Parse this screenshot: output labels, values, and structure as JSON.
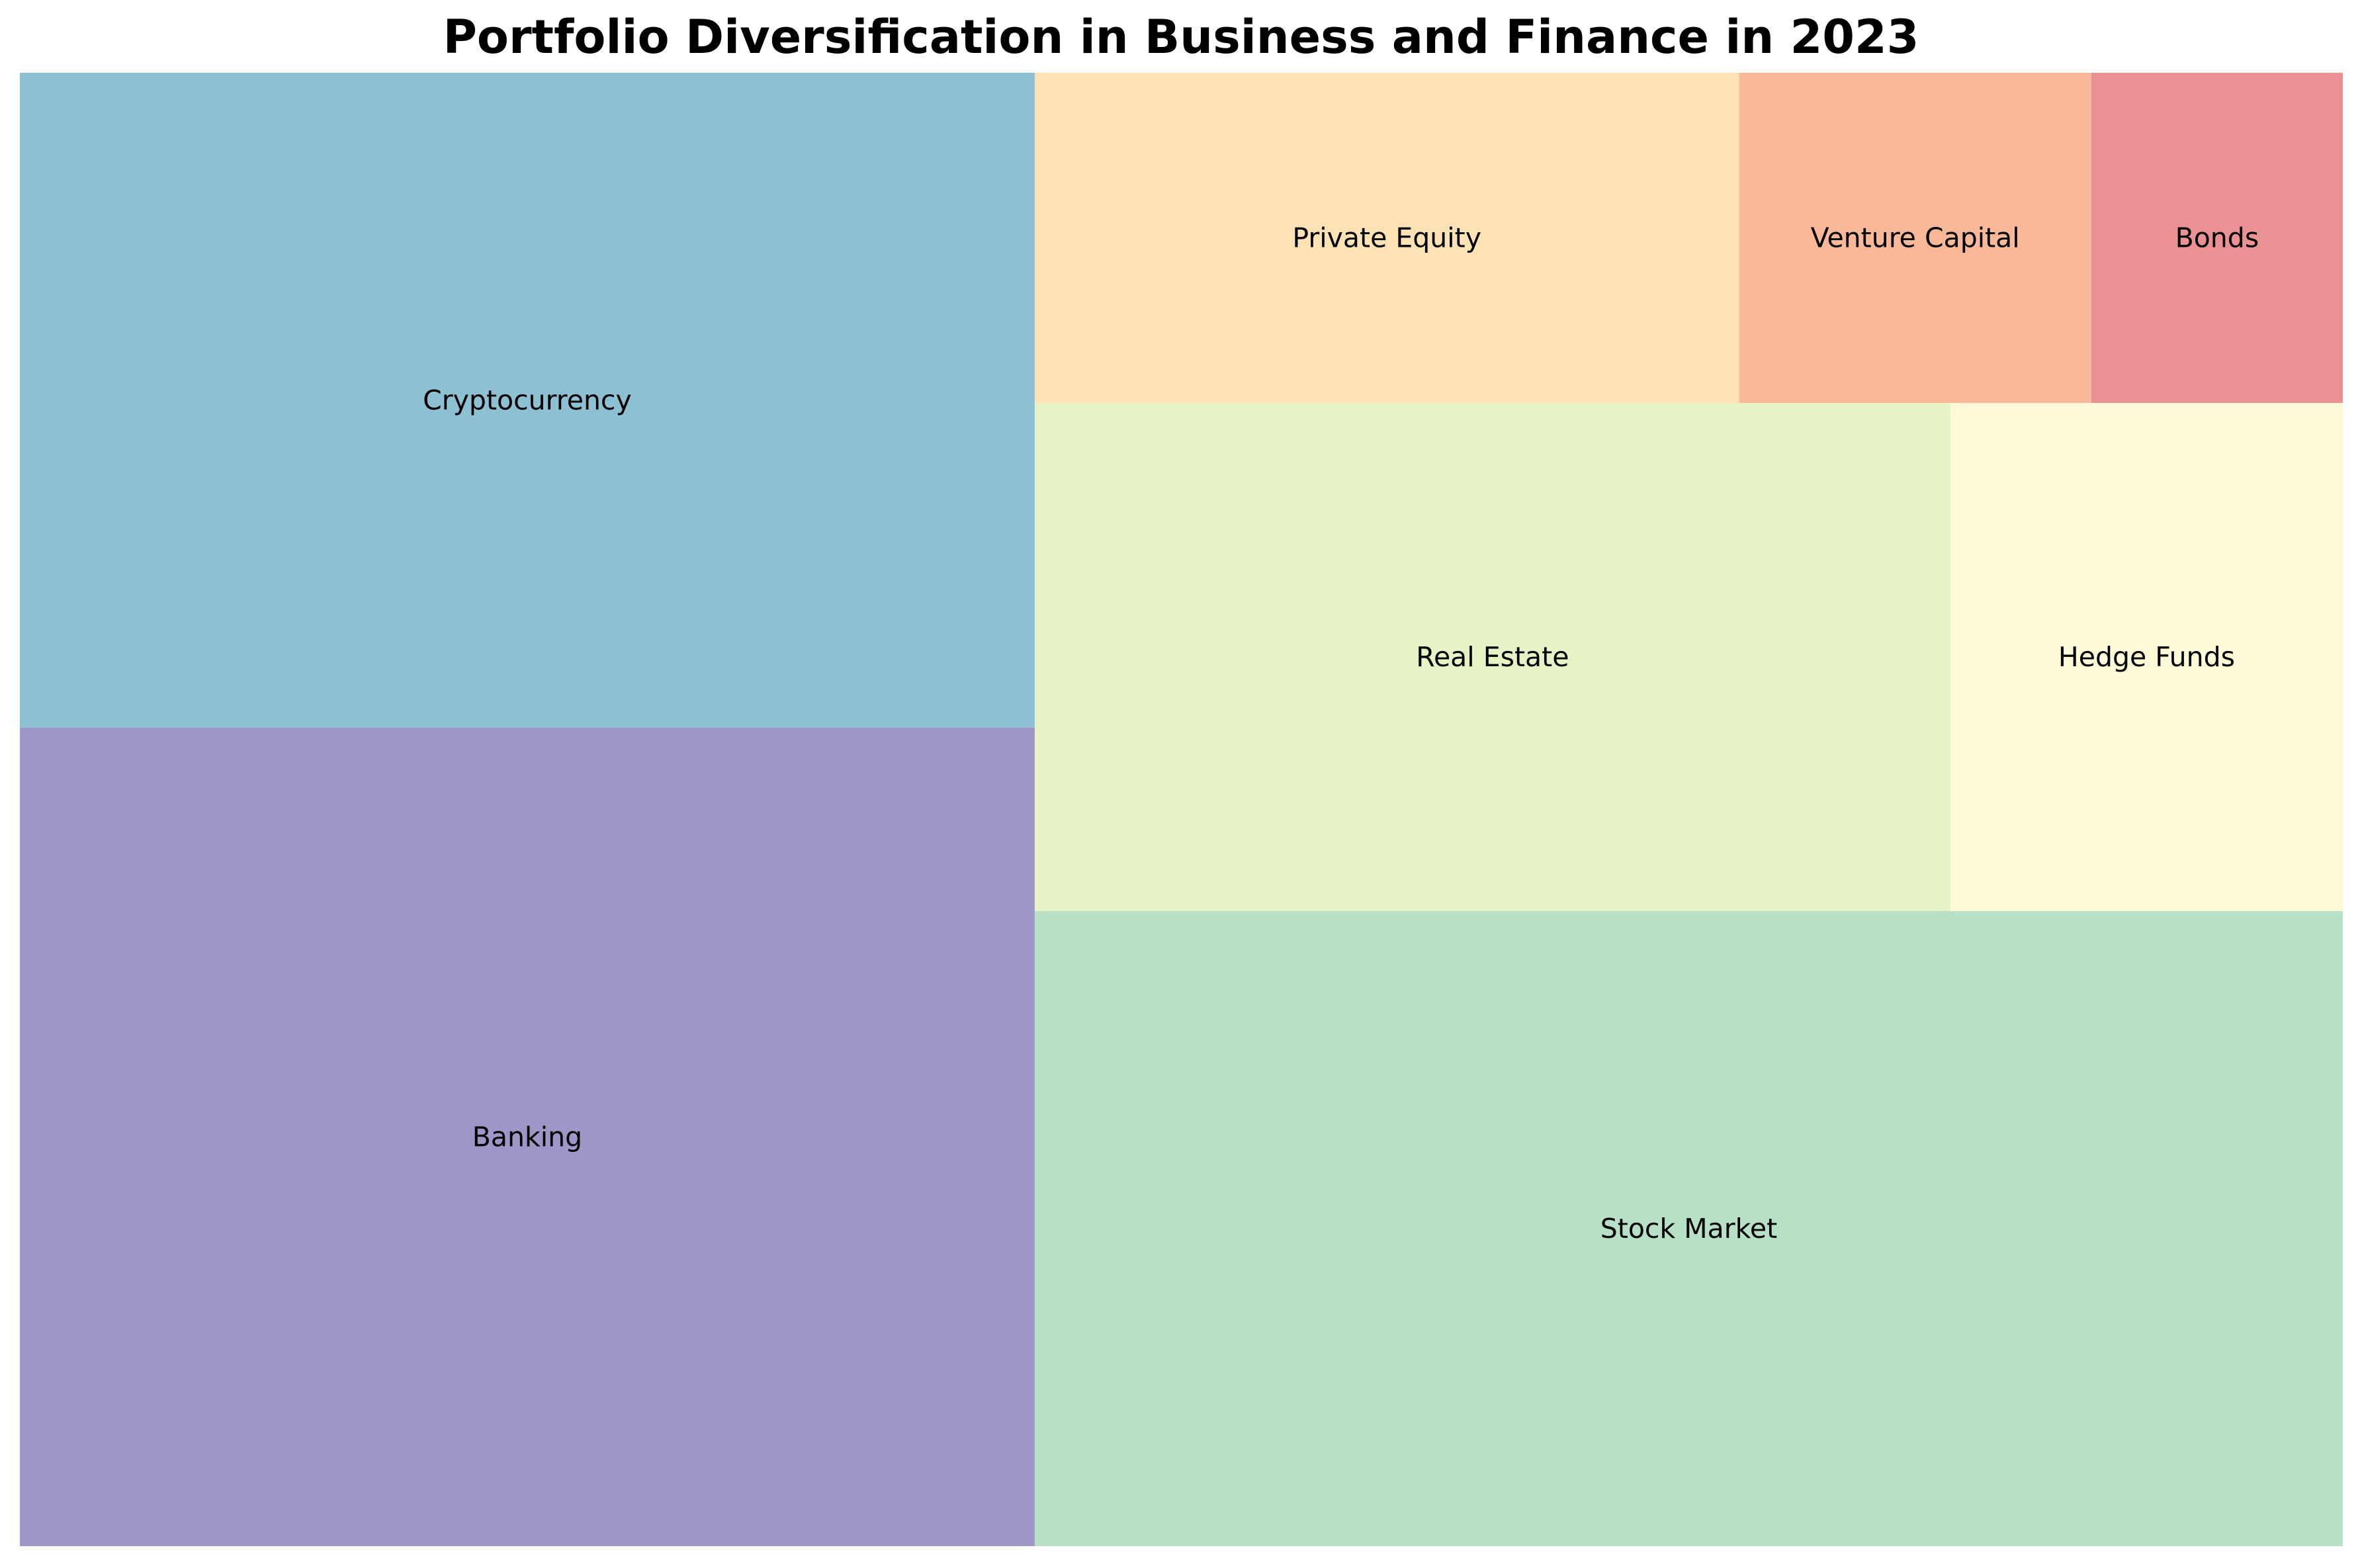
{
  "chart_data": {
    "type": "treemap",
    "title": "Portfolio Diversification in Business and Finance in 2023",
    "categories": [
      "Banking",
      "Cryptocurrency",
      "Stock Market",
      "Real Estate",
      "Hedge Funds",
      "Private Equity",
      "Venture Capital",
      "Bonds"
    ],
    "values": [
      25,
      20,
      25,
      14,
      6,
      7,
      3.5,
      2.5
    ],
    "colors": [
      "#9e96c7",
      "#8dc0d2",
      "#b7e1c7",
      "#e6f4c5",
      "#fefad8",
      "#fde3b3",
      "#f9b998",
      "#ea9193"
    ]
  }
}
